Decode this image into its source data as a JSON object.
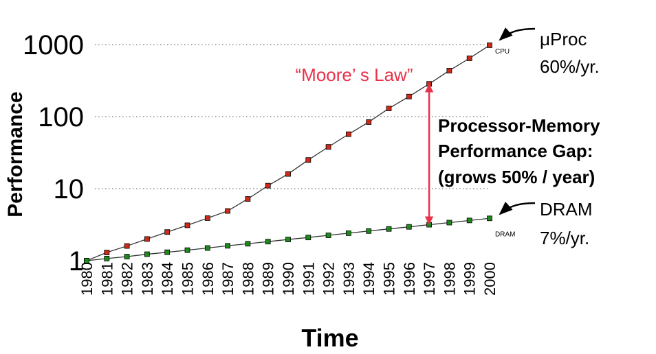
{
  "chart_data": {
    "type": "line",
    "x_label": "Time",
    "y_label": "Performance",
    "log_y": true,
    "grid": true,
    "x": [
      1980,
      1981,
      1982,
      1983,
      1984,
      1985,
      1986,
      1987,
      1988,
      1989,
      1990,
      1991,
      1992,
      1993,
      1994,
      1995,
      1996,
      1997,
      1998,
      1999,
      2000
    ],
    "xlim": [
      1980,
      2000
    ],
    "ylim": [
      1,
      1000
    ],
    "yticks": [
      1,
      10,
      100,
      1000
    ],
    "line_color": "#333333",
    "series": [
      {
        "name": "CPU",
        "color": "#cc2a1a",
        "values": [
          1,
          1.3,
          1.6,
          2.0,
          2.5,
          3.1,
          3.9,
          4.9,
          7.2,
          11,
          16,
          25,
          38,
          57,
          84,
          130,
          190,
          285,
          435,
          645,
          980
        ]
      },
      {
        "name": "DRAM",
        "color": "#1e8a1e",
        "values": [
          1,
          1.07,
          1.14,
          1.23,
          1.31,
          1.4,
          1.5,
          1.61,
          1.72,
          1.84,
          1.97,
          2.1,
          2.25,
          2.41,
          2.58,
          2.76,
          2.95,
          3.16,
          3.38,
          3.62,
          3.87
        ]
      }
    ],
    "annotations": {
      "cpu_label": [
        "μProc",
        "60%/yr."
      ],
      "dram_label": [
        "DRAM",
        "7%/yr."
      ],
      "moore": "“Moore’ s Law”",
      "gap": [
        "Processor-Memory",
        "Performance Gap:",
        "(grows 50% / year)"
      ]
    }
  }
}
